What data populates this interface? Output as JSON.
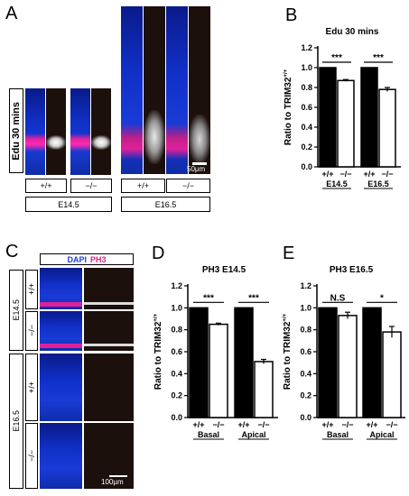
{
  "panels": {
    "A": {
      "letter": "A",
      "row_label": "Edu 30 mins",
      "genotype_labels": [
        "+/+",
        "−/−",
        "+/+",
        "−/−"
      ],
      "stage_labels": [
        "E14.5",
        "E16.5"
      ],
      "scale_label": "50μm"
    },
    "C": {
      "letter": "C",
      "stain_dapi": "DAPI",
      "stain_ph3": "PH3",
      "stage_labels": [
        "E14.5",
        "E16.5"
      ],
      "genotype_labels": [
        "+/+",
        "−/−",
        "+/+",
        "−/−"
      ],
      "scale_label": "100μm"
    }
  },
  "colors": {
    "dapi": "#1b3fd6",
    "ph3": "#e0208a",
    "bar_black": "#000000",
    "bar_white": "#ffffff"
  },
  "chart_data": [
    {
      "panel": "B",
      "type": "bar",
      "title": "Edu 30 mins",
      "ylabel": "Ratio to TRIM32",
      "ylabel_sup": "+/+",
      "ylim": [
        0,
        1.2
      ],
      "yticks": [
        "0.0",
        "0.2",
        "0.4",
        "0.6",
        "0.8",
        "1.0",
        "1.2"
      ],
      "categories": [
        "+/+",
        "−/−",
        "+/+",
        "−/−"
      ],
      "groups": [
        "E14.5",
        "E16.5"
      ],
      "values": [
        1.0,
        0.87,
        1.0,
        0.78
      ],
      "errors": [
        0,
        0.01,
        0,
        0.02
      ],
      "fills": [
        "black",
        "white",
        "black",
        "white"
      ],
      "significance": [
        "***",
        "***"
      ]
    },
    {
      "panel": "D",
      "type": "bar",
      "title": "PH3  E14.5",
      "ylabel": "Ratio to TRIM32",
      "ylabel_sup": "+/+",
      "ylim": [
        0,
        1.2
      ],
      "yticks": [
        "0.0",
        "0.2",
        "0.4",
        "0.6",
        "0.8",
        "1.0",
        "1.2"
      ],
      "categories": [
        "+/+",
        "−/−",
        "+/+",
        "−/−"
      ],
      "groups": [
        "Basal",
        "Apical"
      ],
      "values": [
        1.0,
        0.85,
        1.0,
        0.51
      ],
      "errors": [
        0,
        0.01,
        0,
        0.02
      ],
      "fills": [
        "black",
        "white",
        "black",
        "white"
      ],
      "significance": [
        "***",
        "***"
      ]
    },
    {
      "panel": "E",
      "type": "bar",
      "title": "PH3  E16.5",
      "ylabel": "Ratio to TRIM32",
      "ylabel_sup": "+/+",
      "ylim": [
        0,
        1.2
      ],
      "yticks": [
        "0.0",
        "0.2",
        "0.4",
        "0.6",
        "0.8",
        "1.0",
        "1.2"
      ],
      "categories": [
        "+/+",
        "−/−",
        "+/+",
        "−/−"
      ],
      "groups": [
        "Basal",
        "Apical"
      ],
      "values": [
        1.0,
        0.93,
        1.0,
        0.78
      ],
      "errors": [
        0,
        0.03,
        0,
        0.05
      ],
      "fills": [
        "black",
        "white",
        "black",
        "white"
      ],
      "significance": [
        "N.S",
        "*"
      ]
    }
  ]
}
